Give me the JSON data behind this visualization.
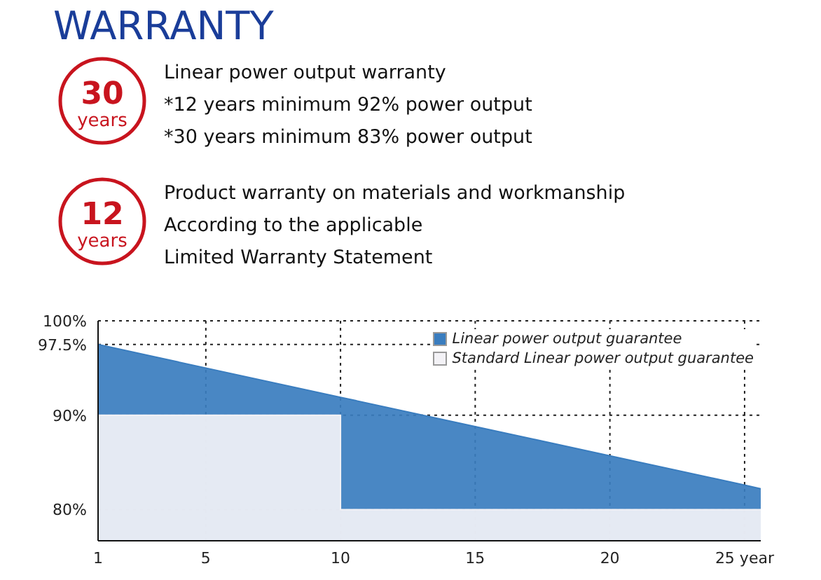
{
  "chart_data": [
    {
      "type": "other",
      "title": "WARRANTY",
      "annotations": [
        "30",
        "years",
        "Linear power output warranty",
        "*12 years minimum 92% power output",
        "*30 years minimum 83% power output",
        "12",
        "years",
        "Product warranty on materials and workmanship",
        "According to the applicable",
        "Limited Warranty Statement"
      ]
    },
    {
      "type": "area",
      "xlim": [
        1,
        25.6
      ],
      "ylim": [
        76.7,
        100
      ],
      "xticks": [
        1,
        5,
        10,
        15,
        20,
        {
          "value": 25,
          "label": "25 year"
        }
      ],
      "yticks": [
        {
          "value": 80,
          "label": "80%"
        },
        {
          "value": 90,
          "label": "90%"
        },
        {
          "value": 97.5,
          "label": "97.5%"
        },
        {
          "value": 100,
          "label": "100%"
        }
      ],
      "grid": true,
      "legend": "top right",
      "series": [
        {
          "name": "Linear power output guarantee",
          "type": "area",
          "color": "#3a7dbf",
          "x": [
            1,
            5,
            10,
            15,
            20,
            25,
            25.6
          ],
          "values": [
            97.5,
            95.0,
            91.9,
            88.8,
            85.7,
            82.6,
            82.2
          ]
        },
        {
          "name": "Standard Linear power output guarantee",
          "type": "area",
          "color": "#f3f2f6",
          "x": [
            1,
            10,
            10,
            25.6
          ],
          "values": [
            90,
            90,
            80,
            80
          ]
        }
      ]
    }
  ]
}
